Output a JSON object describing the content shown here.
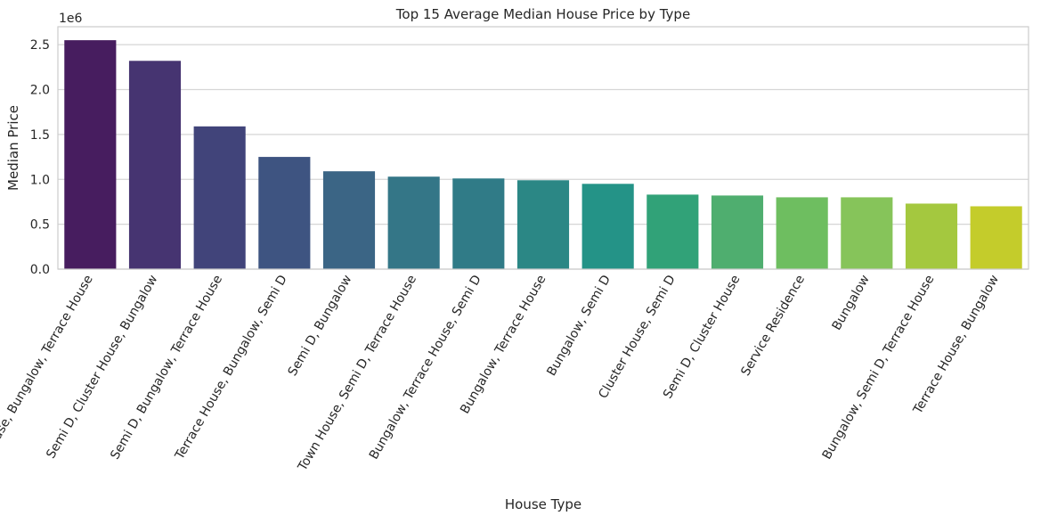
{
  "chart_data": {
    "type": "bar",
    "title": "Top 15 Average Median House Price by Type",
    "xlabel": "House Type",
    "ylabel": "Median Price",
    "y_offset_label": "1e6",
    "ylim": [
      0,
      2.7
    ],
    "yticks": [
      "0.0",
      "0.5",
      "1.0",
      "1.5",
      "2.0",
      "2.5"
    ],
    "ytick_values": [
      0,
      0.5,
      1.0,
      1.5,
      2.0,
      2.5
    ],
    "grid": true,
    "categories": [
      "Town House, Bungalow, Terrace House",
      "Semi D, Cluster House, Bungalow",
      "Semi D, Bungalow, Terrace House",
      "Terrace House, Bungalow, Semi D",
      "Semi D, Bungalow",
      "Town House, Semi D, Terrace House",
      "Bungalow, Terrace House, Semi D",
      "Bungalow, Terrace House",
      "Bungalow, Semi D",
      "Cluster House, Semi D",
      "Semi D, Cluster House",
      "Service Residence",
      "Bungalow",
      "Bungalow, Semi D, Terrace House",
      "Terrace House, Bungalow"
    ],
    "values": [
      2.55,
      2.32,
      1.59,
      1.25,
      1.09,
      1.03,
      1.01,
      0.99,
      0.95,
      0.83,
      0.82,
      0.8,
      0.8,
      0.73,
      0.7
    ],
    "colors": [
      "#471D5F",
      "#463471",
      "#41447A",
      "#3E5481",
      "#3B6585",
      "#347687",
      "#307B87",
      "#2B8785",
      "#249387",
      "#31A278",
      "#4FAE6F",
      "#6EBE60",
      "#86C45A",
      "#A4C83F",
      "#C4CC2B"
    ]
  }
}
